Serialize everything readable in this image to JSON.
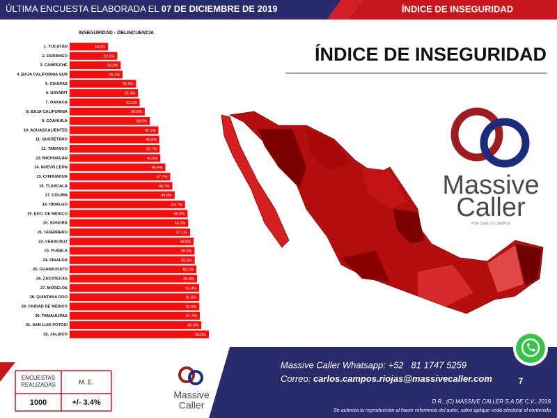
{
  "header": {
    "left_text": "ÚLTIMA ENCUESTA ELABORADA EL ",
    "date": "07 DE DICIEMBRE DE 2019",
    "right_text": "ÍNDICE DE INSEGURIDAD"
  },
  "page_title": "ÍNDICE DE INSEGURIDAD",
  "logo": {
    "line1": "Massive",
    "line2": "Caller",
    "tagline": "POR CARLOS CAMPOS"
  },
  "chart_data": {
    "type": "bar",
    "orientation": "horizontal",
    "title": "INSEGURIDAD - DELINCUENCIA",
    "color": "#f80d0d",
    "categories": [
      "1. YUCATÁN",
      "2. DURANGO",
      "3. CAMPECHE",
      "4. BAJA CALIFORNIA SUR",
      "5. CHIAPAS",
      "6. NAYARIT",
      "7. OAXACA",
      "8. BAJA CALIFORNIA",
      "9. COAHUILA",
      "10. AGUASCALIENTES",
      "11. QUERÉTARO",
      "12. TABASCO",
      "13. MICHOACÁN",
      "14. NUEVO LEÓN",
      "15. CHIHUAHUA",
      "16. TLAXCALA",
      "17. COLIMA",
      "18. HIDALGO",
      "19. EDO. DE MÉXICO",
      "20. SONORA",
      "21. GUERRERO",
      "22. VERACRUZ",
      "23. PUEBLA",
      "24. SINALOA",
      "25. GUANAJUATO",
      "26. ZACATECAS",
      "27. MORELOS",
      "28. QUINTANA ROO",
      "29. CIUDAD DE MÉXICO",
      "30. TAMAULIPAS",
      "31. SAN LUIS POTOSÍ",
      "32. JALISCO"
    ],
    "values": [
      18.2,
      22.6,
      24.2,
      25.1,
      31.5,
      32.4,
      33.2,
      35.6,
      38.0,
      42.1,
      42.5,
      42.7,
      43.0,
      45.4,
      47.7,
      48.7,
      49.8,
      54.7,
      55.9,
      56.2,
      57.1,
      58.8,
      59.2,
      59.3,
      60.1,
      60.4,
      61.4,
      61.5,
      61.5,
      61.7,
      62.4,
      66.0
    ],
    "value_labels": [
      "18.2%",
      "22.6%",
      "24.2%",
      "25.1%",
      "31.5%",
      "32.4%",
      "33.2%",
      "35.6%",
      "38.0%",
      "42.1%",
      "42.5%",
      "42.7%",
      "43.0%",
      "45.4%",
      "47.7%",
      "48.7%",
      "49.8%",
      "54.7%",
      "55.9%",
      "56.2%",
      "57.1%",
      "58.8%",
      "59.2%",
      "59.3%",
      "60.1%",
      "60.4%",
      "61.4%",
      "61.5%",
      "61.5%",
      "61.7%",
      "62.4%",
      "66.0%"
    ]
  },
  "survey_table": {
    "headers": [
      "ENCUESTAS REALIZADAS",
      "M. E."
    ],
    "row": [
      "1000",
      "+/- 3.4%"
    ]
  },
  "footer": {
    "whatsapp": "Massive Caller Whatsapp: +52   81 1747 5259",
    "email_label": "Correo: ",
    "email": "carlos.campos.riojas@massivecaller.com",
    "page_number": "7",
    "copyright": "D.R., (C) MASSIVE CALLER S.A DE C.V., 2019.",
    "disclaimer": "Se autoriza la reproducción al hacer referencia del autor, salvo aplique veda electoral al contenido."
  }
}
